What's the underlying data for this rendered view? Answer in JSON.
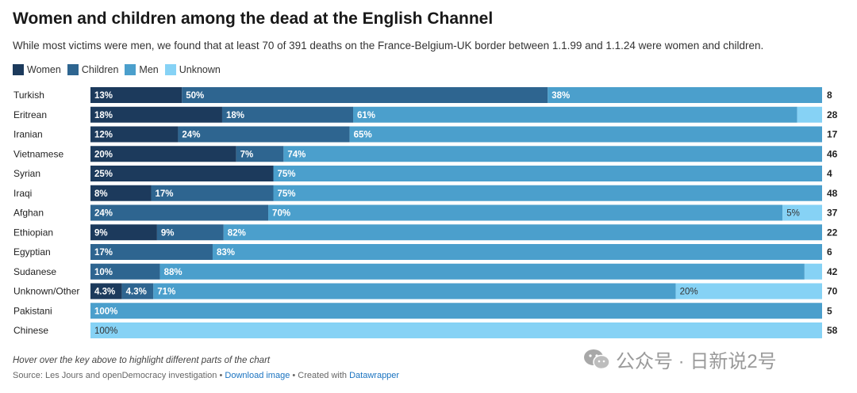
{
  "title": "Women and children among the dead at the English Channel",
  "subtitle": "While most victims were men, we found that at least 70 of 391 deaths on the France-Belgium-UK border between 1.1.99 and 1.1.24 were women and children.",
  "note": "Hover over the key above to highlight different parts of the chart",
  "source": {
    "prefix": "Source: Les Jours and openDemocracy investigation • ",
    "download": "Download image",
    "middle": " • Created with ",
    "tool": "Datawrapper"
  },
  "watermark": {
    "text": "公众号 · 日新说2号"
  },
  "colors": {
    "women": "#1c3a5c",
    "children": "#2e6590",
    "men": "#4b9fcc",
    "unknown": "#86d2f5"
  },
  "legend": [
    {
      "key": "women",
      "label": "Women"
    },
    {
      "key": "children",
      "label": "Children"
    },
    {
      "key": "men",
      "label": "Men"
    },
    {
      "key": "unknown",
      "label": "Unknown"
    }
  ],
  "chart_data": {
    "type": "bar",
    "orientation": "horizontal",
    "stacked": "percent",
    "title": "Women and children among the dead at the English Channel",
    "categories": [
      "Turkish",
      "Eritrean",
      "Iranian",
      "Vietnamese",
      "Syrian",
      "Iraqi",
      "Afghan",
      "Ethiopian",
      "Egyptian",
      "Sudanese",
      "Unknown/Other",
      "Pakistani",
      "Chinese"
    ],
    "series": [
      {
        "name": "Women",
        "values": [
          12.5,
          18,
          12,
          20,
          25,
          8.3,
          0,
          9.1,
          0,
          0,
          4.3,
          0,
          0
        ],
        "labels": [
          "13%",
          "18%",
          "12%",
          "20%",
          "25%",
          "8%",
          "",
          "9%",
          "",
          "",
          "4.3%",
          "",
          ""
        ]
      },
      {
        "name": "Children",
        "values": [
          50,
          17.9,
          23.5,
          6.5,
          0,
          16.7,
          24.3,
          9.1,
          16.7,
          9.5,
          4.3,
          0,
          0
        ],
        "labels": [
          "50%",
          "18%",
          "24%",
          "7%",
          "",
          "17%",
          "24%",
          "9%",
          "17%",
          "10%",
          "4.3%",
          "",
          ""
        ]
      },
      {
        "name": "Men",
        "values": [
          37.5,
          60.7,
          64.7,
          73.9,
          75,
          75,
          70.3,
          81.8,
          83.3,
          88.1,
          71.4,
          100,
          0
        ],
        "labels": [
          "38%",
          "61%",
          "65%",
          "74%",
          "75%",
          "75%",
          "70%",
          "82%",
          "83%",
          "88%",
          "71%",
          "100%",
          ""
        ]
      },
      {
        "name": "Unknown",
        "values": [
          0,
          3.4,
          0,
          0,
          0,
          0,
          5.4,
          0,
          0,
          2.4,
          20,
          0,
          100
        ],
        "labels": [
          "",
          "",
          "",
          "",
          "",
          "",
          "5%",
          "",
          "",
          "",
          "20%",
          "",
          "100%"
        ]
      }
    ],
    "totals": [
      8,
      28,
      17,
      46,
      4,
      48,
      37,
      22,
      6,
      42,
      70,
      5,
      58
    ],
    "xlim": [
      0,
      100
    ]
  }
}
